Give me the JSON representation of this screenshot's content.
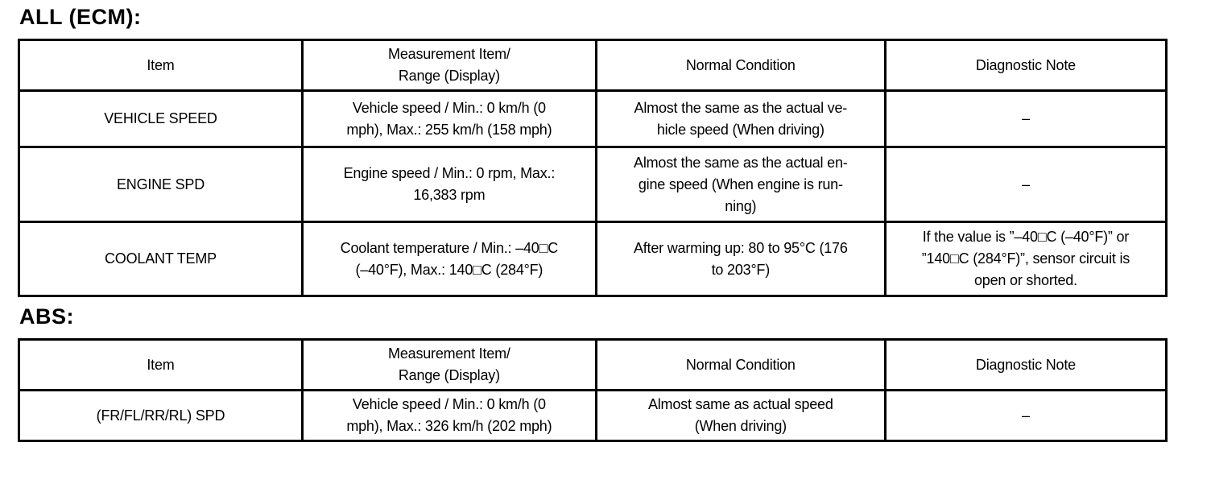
{
  "colors": {
    "background": "#ffffff",
    "text": "#000000",
    "table_border": "#000000"
  },
  "sections": [
    {
      "title": "ALL (ECM):",
      "columns": [
        "Item",
        "Measurement Item/\nRange (Display)",
        "Normal Condition",
        "Diagnostic Note"
      ],
      "rows": [
        {
          "item": "VEHICLE SPEED",
          "measurement": "Vehicle speed / Min.: 0 km/h (0\nmph), Max.: 255 km/h (158 mph)",
          "normal_condition": "Almost the same as the actual ve-\nhicle speed (When driving)",
          "diagnostic_note": "–"
        },
        {
          "item": "ENGINE SPD",
          "measurement": "Engine speed / Min.: 0 rpm, Max.:\n16,383 rpm",
          "normal_condition": "Almost the same as the actual en-\ngine speed (When engine is run-\nning)",
          "diagnostic_note": "–"
        },
        {
          "item": "COOLANT TEMP",
          "measurement": "Coolant temperature / Min.: –40□C\n(–40°F), Max.: 140□C (284°F)",
          "normal_condition": "After warming up: 80 to 95°C (176\nto 203°F)",
          "diagnostic_note": "If the value is ”–40□C (–40°F)” or\n”140□C (284°F)”, sensor circuit is\nopen or shorted."
        }
      ]
    },
    {
      "title": "ABS:",
      "columns": [
        "Item",
        "Measurement Item/\nRange (Display)",
        "Normal Condition",
        "Diagnostic Note"
      ],
      "rows": [
        {
          "item": "(FR/FL/RR/RL) SPD",
          "measurement": "Vehicle speed / Min.: 0 km/h (0\nmph), Max.: 326 km/h (202 mph)",
          "normal_condition": "Almost same as actual speed\n(When driving)",
          "diagnostic_note": "–"
        }
      ]
    }
  ]
}
